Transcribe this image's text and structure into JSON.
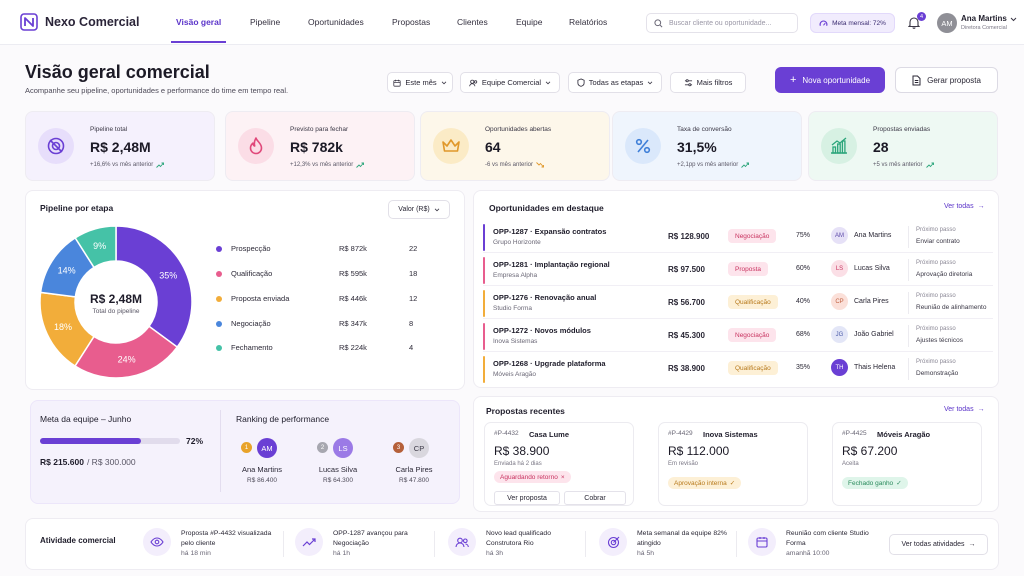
{
  "app": {
    "name": "Nexo Comercial"
  },
  "nav": {
    "tabs": [
      "Visão geral",
      "Pipeline",
      "Oportunidades",
      "Propostas",
      "Clientes",
      "Equipe",
      "Relatórios"
    ]
  },
  "search": {
    "placeholder": "Buscar cliente ou oportunidade..."
  },
  "meta_pill": "Meta mensal: 72%",
  "notifications": {
    "count": "4"
  },
  "user": {
    "initials": "AM",
    "name": "Ana Martins",
    "role": "Diretora Comercial"
  },
  "header": {
    "title": "Visão geral comercial",
    "subtitle": "Acompanhe seu pipeline, oportunidades e performance do time em tempo real.",
    "filters": [
      "Este mês",
      "Equipe Comercial",
      "Todas as etapas",
      "Mais filtros"
    ],
    "primary_button": "Nova oportunidade",
    "secondary_button": "Gerar proposta"
  },
  "kpis": [
    {
      "label": "Pipeline total",
      "value": "R$ 2,48M",
      "delta": "+16,6% vs mês anterior",
      "trend": "up",
      "icon": "target-icon",
      "color": "#7c4fe0"
    },
    {
      "label": "Previsto para fechar",
      "value": "R$ 782k",
      "delta": "+12,3% vs mês anterior",
      "trend": "up",
      "icon": "flame-icon",
      "color": "#e0487a"
    },
    {
      "label": "Oportunidades abertas",
      "value": "64",
      "delta": "-6 vs mês anterior",
      "trend": "down",
      "icon": "crown-icon",
      "color": "#e8a32a"
    },
    {
      "label": "Taxa de conversão",
      "value": "31,5%",
      "delta": "+2,1pp vs mês anterior",
      "trend": "up",
      "icon": "percent-icon",
      "color": "#3f7fd8"
    },
    {
      "label": "Propostas enviadas",
      "value": "28",
      "delta": "+5 vs mês anterior",
      "trend": "up",
      "icon": "bar-chart-icon",
      "color": "#2aa57a"
    }
  ],
  "pipeline": {
    "title": "Pipeline por etapa",
    "dropdown": "Valor (R$)",
    "center_value": "R$ 2,48M",
    "center_label": "Total do pipeline"
  },
  "chart_data": {
    "type": "pie",
    "categories": [
      "Prospecção",
      "Qualificação",
      "Proposta enviada",
      "Negociação",
      "Fechamento"
    ],
    "values": [
      872,
      595,
      446,
      347,
      224
    ],
    "value_labels": [
      "R$ 872k",
      "R$ 595k",
      "R$ 446k",
      "R$ 347k",
      "R$ 224k"
    ],
    "counts": [
      22,
      18,
      12,
      8,
      4
    ],
    "percent_labels": [
      "35%",
      "24%",
      "18%",
      "14%",
      "9%"
    ],
    "colors": [
      "#6a3fd4",
      "#e85d8e",
      "#f2ad3a",
      "#4a86dc",
      "#45c2a7"
    ]
  },
  "featured": {
    "title": "Oportunidades em destaque",
    "link": "Ver todas",
    "rows": [
      {
        "title": "OPP-1287 · Expansão contratos",
        "company": "Grupo Horizonte",
        "value": "R$ 128.900",
        "stage": "Negociação",
        "pct": "75%",
        "initials": "AM",
        "owner": "Ana Martins",
        "next_label": "Próximo passo",
        "next": "Enviar contrato",
        "bar": "#6a3fd4",
        "stage_bg": "#fde4ec",
        "stage_fg": "#c8325f",
        "av_bg": "#e6e1f7",
        "av_fg": "#5b48a8"
      },
      {
        "title": "OPP-1281 · Implantação regional",
        "company": "Empresa Alpha",
        "value": "R$ 97.500",
        "stage": "Proposta",
        "pct": "60%",
        "initials": "LS",
        "owner": "Lucas Silva",
        "next_label": "Próximo passo",
        "next": "Aprovação diretoria",
        "bar": "#e85d8e",
        "stage_bg": "#fde4ec",
        "stage_fg": "#c8325f",
        "av_bg": "#fbdfe6",
        "av_fg": "#c8325f"
      },
      {
        "title": "OPP-1276 · Renovação anual",
        "company": "Studio Forma",
        "value": "R$ 56.700",
        "stage": "Qualificação",
        "pct": "40%",
        "initials": "CP",
        "owner": "Carla Pires",
        "next_label": "Próximo passo",
        "next": "Reunião de alinhamento",
        "bar": "#f2ad3a",
        "stage_bg": "#fdf0d6",
        "stage_fg": "#b7791b",
        "av_bg": "#fbe0d9",
        "av_fg": "#c06040"
      },
      {
        "title": "OPP-1272 · Novos módulos",
        "company": "Inova Sistemas",
        "value": "R$ 45.300",
        "stage": "Negociação",
        "pct": "68%",
        "initials": "JG",
        "owner": "João Gabriel",
        "next_label": "Próximo passo",
        "next": "Ajustes técnicos",
        "bar": "#e85d8e",
        "stage_bg": "#fde4ec",
        "stage_fg": "#c8325f",
        "av_bg": "#e3e6f7",
        "av_fg": "#4a5aa8"
      },
      {
        "title": "OPP-1268 · Upgrade plataforma",
        "company": "Móveis Aragão",
        "value": "R$ 38.900",
        "stage": "Qualificação",
        "pct": "35%",
        "initials": "TH",
        "owner": "Thais Helena",
        "next_label": "Próximo passo",
        "next": "Demonstração",
        "bar": "#f2ad3a",
        "stage_bg": "#fdf0d6",
        "stage_fg": "#b7791b",
        "av_bg": "#6a3fd4",
        "av_fg": "#ffffff"
      }
    ]
  },
  "team_goal": {
    "title": "Meta da equipe – Junho",
    "percent": 72,
    "percent_label": "72%",
    "current": "R$ 215.600",
    "target": "/ R$ 300.000"
  },
  "ranking": {
    "title": "Ranking de performance",
    "people": [
      {
        "rank": "1",
        "initials": "AM",
        "name": "Ana Martins",
        "value": "R$ 86.400",
        "badge": "#e8a32a",
        "av_bg": "#6a3fd4",
        "av_fg": "#ffffff"
      },
      {
        "rank": "2",
        "initials": "LS",
        "name": "Lucas Silva",
        "value": "R$ 64.300",
        "badge": "#a7a7b0",
        "av_bg": "#9b7ae6",
        "av_fg": "#ffffff"
      },
      {
        "rank": "3",
        "initials": "CP",
        "name": "Carla Pires",
        "value": "R$ 47.800",
        "badge": "#b5603a",
        "av_bg": "#d9d7de",
        "av_fg": "#3a3745"
      }
    ]
  },
  "proposals": {
    "title": "Propostas recentes",
    "link": "Ver todas",
    "cards": [
      {
        "id": "#P-4432",
        "name": "Casa Lume",
        "value": "R$ 38.900",
        "status": "Enviada há 2 dias",
        "chip": "Aguardando retorno",
        "chip_icon": "x-icon",
        "chip_bg": "#fde4ec",
        "chip_fg": "#c8325f",
        "buttons": [
          "Ver proposta",
          "Cobrar"
        ]
      },
      {
        "id": "#P-4429",
        "name": "Inova Sistemas",
        "value": "R$ 112.000",
        "status": "Em revisão",
        "chip": "Aprovação interna",
        "chip_icon": "check-icon",
        "chip_bg": "#fdf0d6",
        "chip_fg": "#b7791b"
      },
      {
        "id": "#P-4425",
        "name": "Móveis Aragão",
        "value": "R$ 67.200",
        "status": "Aceita",
        "chip": "Fechado ganho",
        "chip_icon": "check-icon",
        "chip_bg": "#dff5ea",
        "chip_fg": "#2a8a5c"
      }
    ]
  },
  "activity": {
    "title": "Atividade comercial",
    "button": "Ver todas atividades",
    "items": [
      {
        "icon": "eye-icon",
        "text": "Proposta #P-4432 visualizada pelo cliente",
        "time": "há 18 min"
      },
      {
        "icon": "trend-up-icon",
        "text": "OPP-1287 avançou para Negociação",
        "time": "há 1h"
      },
      {
        "icon": "users-icon",
        "text": "Novo lead qualificado Construtora Rio",
        "time": "há 3h"
      },
      {
        "icon": "target-icon",
        "text": "Meta semanal da equipe 82% atingido",
        "time": "há 5h"
      },
      {
        "icon": "calendar-icon",
        "text": "Reunião com cliente Studio Forma",
        "time": "amanhã 10:00"
      }
    ]
  }
}
